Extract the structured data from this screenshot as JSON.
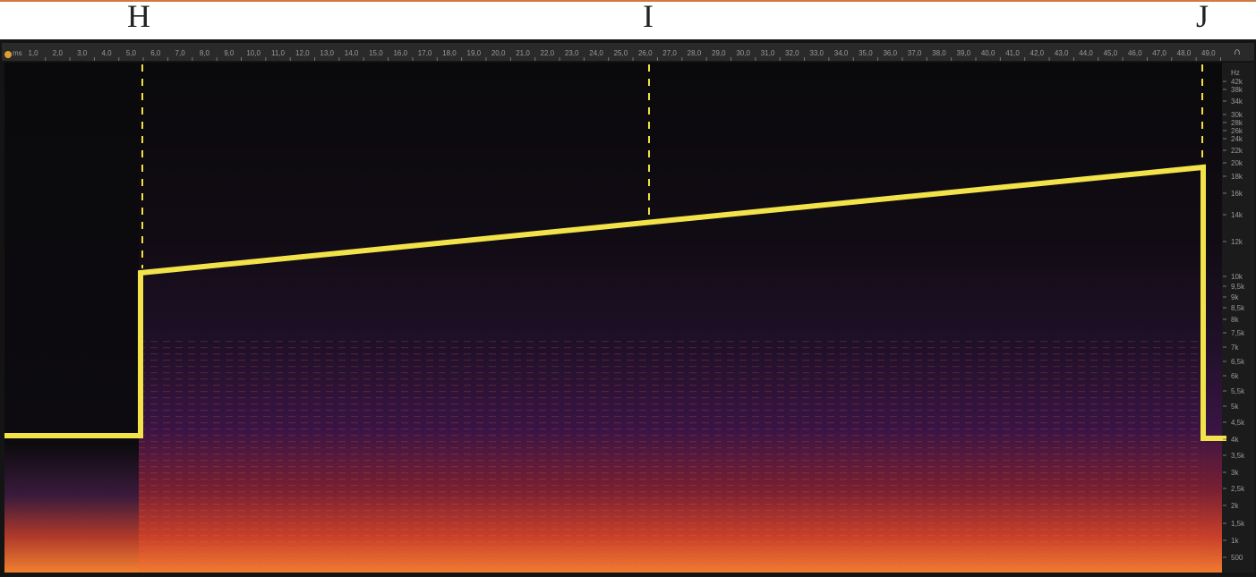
{
  "annotations": [
    "H",
    "I",
    "J"
  ],
  "time_ruler": {
    "unit": "ms",
    "labels": [
      "1,0",
      "2,0",
      "3,0",
      "4,0",
      "5,0",
      "6,0",
      "7,0",
      "8,0",
      "9,0",
      "10,0",
      "11,0",
      "12,0",
      "13,0",
      "14,0",
      "15,0",
      "16,0",
      "17,0",
      "18,0",
      "19,0",
      "20,0",
      "21,0",
      "22,0",
      "23,0",
      "24,0",
      "25,0",
      "26,0",
      "27,0",
      "28,0",
      "29,0",
      "30,0",
      "31,0",
      "32,0",
      "33,0",
      "34,0",
      "35,0",
      "36,0",
      "37,0",
      "38,0",
      "39,0",
      "40,0",
      "41,0",
      "42,0",
      "43,0",
      "44,0",
      "45,0",
      "46,0",
      "47,0",
      "48,0",
      "49,0"
    ]
  },
  "frequency_ruler": {
    "unit": "Hz",
    "labels": [
      "42k",
      "38k",
      "34k",
      "30k",
      "28k",
      "26k",
      "24k",
      "22k",
      "20k",
      "18k",
      "16k",
      "14k",
      "12k",
      "10k",
      "9,5k",
      "9k",
      "8,5k",
      "8k",
      "7,5k",
      "7k",
      "6,5k",
      "6k",
      "5,5k",
      "5k",
      "4,5k",
      "4k",
      "3,5k",
      "3k",
      "2,5k",
      "2k",
      "1,5k",
      "1k",
      "500"
    ]
  }
}
